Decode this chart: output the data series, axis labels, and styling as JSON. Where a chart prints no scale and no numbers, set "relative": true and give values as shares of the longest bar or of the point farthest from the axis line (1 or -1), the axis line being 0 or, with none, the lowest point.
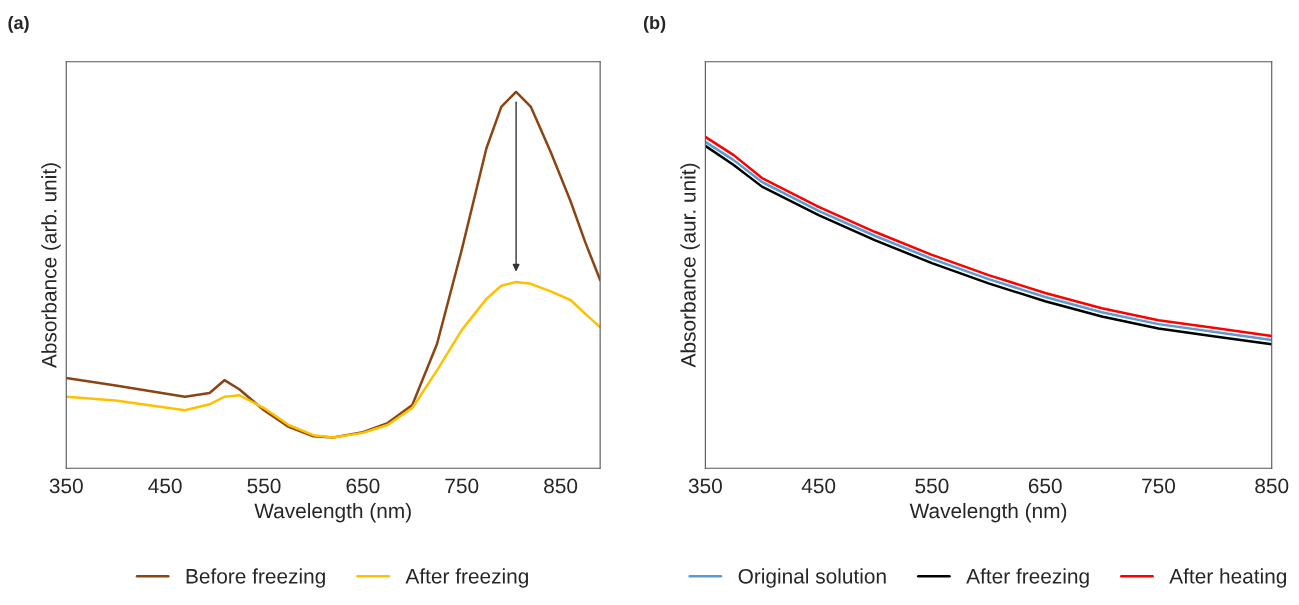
{
  "chart_data": [
    {
      "type": "line",
      "title": "(a)",
      "xlabel": "Wavelength (nm)",
      "ylabel": "Absorbance (arb. unit)",
      "relative": true,
      "xlim": [
        350,
        890
      ],
      "xticks": [
        350,
        450,
        550,
        650,
        750,
        850
      ],
      "legend": "bottom",
      "grid": false,
      "x": [
        350,
        400,
        470,
        495,
        510,
        525,
        550,
        575,
        600,
        620,
        650,
        675,
        700,
        725,
        750,
        775,
        790,
        805,
        820,
        840,
        860,
        875,
        890
      ],
      "series": [
        {
          "name": "Before freezing",
          "color": "#8b4513",
          "values": [
            0.24,
            0.22,
            0.19,
            0.2,
            0.234,
            0.21,
            0.154,
            0.11,
            0.085,
            0.082,
            0.096,
            0.12,
            0.168,
            0.33,
            0.58,
            0.85,
            0.96,
            1.0,
            0.96,
            0.84,
            0.71,
            0.6,
            0.5
          ]
        },
        {
          "name": "After freezing",
          "color": "#ffc000",
          "values": [
            0.19,
            0.18,
            0.154,
            0.17,
            0.19,
            0.194,
            0.16,
            0.115,
            0.088,
            0.082,
            0.094,
            0.115,
            0.16,
            0.26,
            0.367,
            0.45,
            0.485,
            0.495,
            0.49,
            0.47,
            0.447,
            0.41,
            0.375
          ]
        }
      ]
    },
    {
      "type": "line",
      "title": "(b)",
      "xlabel": "Wavelength (nm)",
      "ylabel": "Absorbance (aur. unit)",
      "relative": true,
      "xlim": [
        350,
        850
      ],
      "xticks": [
        350,
        450,
        550,
        650,
        750,
        850
      ],
      "legend": "bottom",
      "grid": false,
      "x": [
        350,
        375,
        400,
        450,
        500,
        550,
        600,
        650,
        700,
        750,
        800,
        850
      ],
      "series": [
        {
          "name": "Original solution",
          "color": "#5b9bd5",
          "values": [
            0.985,
            0.93,
            0.864,
            0.777,
            0.701,
            0.632,
            0.571,
            0.517,
            0.471,
            0.435,
            0.411,
            0.387
          ]
        },
        {
          "name": "After freezing",
          "color": "#000000",
          "values": [
            0.973,
            0.915,
            0.85,
            0.764,
            0.688,
            0.619,
            0.558,
            0.504,
            0.458,
            0.422,
            0.398,
            0.374
          ]
        },
        {
          "name": "After heating",
          "color": "#ff0000",
          "values": [
            1.0,
            0.945,
            0.876,
            0.789,
            0.713,
            0.644,
            0.583,
            0.529,
            0.483,
            0.447,
            0.423,
            0.399
          ]
        }
      ]
    }
  ]
}
